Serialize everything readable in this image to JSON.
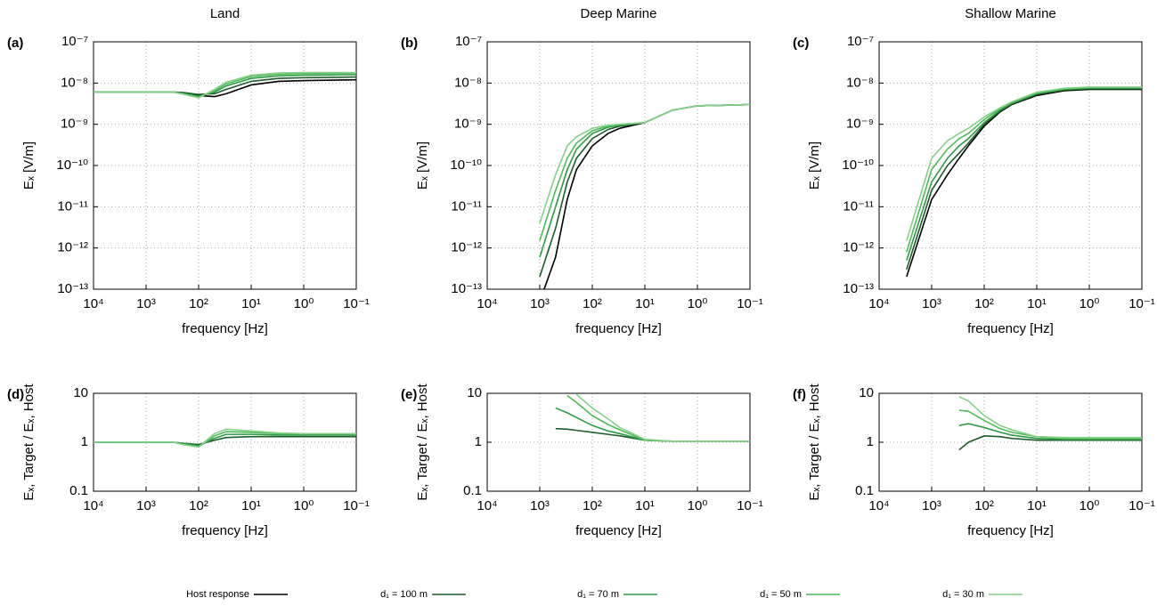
{
  "chart_data": [
    {
      "type": "line",
      "title": "Land",
      "panel_label": "(a)",
      "xlabel": "frequency [Hz]",
      "ylabel": "Eₓ [V/m]",
      "log_x": true,
      "log_y": true,
      "grid": true,
      "x": [
        10000,
        3000,
        1000,
        500,
        300,
        200,
        100,
        50,
        30,
        10,
        3,
        1,
        0.1
      ],
      "xlim": [
        10000,
        0.1
      ],
      "xticks": [
        {
          "value": 10000,
          "label": "10⁴"
        },
        {
          "value": 1000,
          "label": "10³"
        },
        {
          "value": 100,
          "label": "10²"
        },
        {
          "value": 10,
          "label": "10¹"
        },
        {
          "value": 1,
          "label": "10⁰"
        },
        {
          "value": 0.1,
          "label": "10⁻¹"
        }
      ],
      "ylim": [
        1e-13,
        1e-07
      ],
      "yticks": [
        {
          "value": 1e-13,
          "label": "10⁻¹³"
        },
        {
          "value": 1e-12,
          "label": "10⁻¹²"
        },
        {
          "value": 1e-11,
          "label": "10⁻¹¹"
        },
        {
          "value": 1e-10,
          "label": "10⁻¹⁰"
        },
        {
          "value": 1e-09,
          "label": "10⁻⁹"
        },
        {
          "value": 1e-08,
          "label": "10⁻⁸"
        },
        {
          "value": 1e-07,
          "label": "10⁻⁷"
        }
      ],
      "series": [
        {
          "name": "Host response",
          "color": "#000000",
          "values": [
            6e-09,
            6e-09,
            6e-09,
            6e-09,
            6e-09,
            5.8e-09,
            5e-09,
            4.7e-09,
            5.5e-09,
            9e-09,
            1.1e-08,
            1.15e-08,
            1.2e-08
          ]
        },
        {
          "name": "d₁ = 100 m",
          "color": "#1e5c2c",
          "values": [
            6e-09,
            6e-09,
            6e-09,
            6e-09,
            6e-09,
            5.9e-09,
            5.3e-09,
            5.5e-09,
            7e-09,
            1.1e-08,
            1.3e-08,
            1.35e-08,
            1.4e-08
          ]
        },
        {
          "name": "d₁ = 70 m",
          "color": "#2e9a45",
          "values": [
            6e-09,
            6e-09,
            6e-09,
            6e-09,
            6e-09,
            5.6e-09,
            4.8e-09,
            6e-09,
            8.5e-09,
            1.3e-08,
            1.5e-08,
            1.55e-08,
            1.6e-08
          ]
        },
        {
          "name": "d₁ = 50 m",
          "color": "#4dbb55",
          "values": [
            6e-09,
            6e-09,
            6e-09,
            6e-09,
            6e-09,
            5.5e-09,
            4.5e-09,
            6.5e-09,
            9.5e-09,
            1.45e-08,
            1.65e-08,
            1.7e-08,
            1.75e-08
          ]
        },
        {
          "name": "d₁ = 30 m",
          "color": "#86d08a",
          "values": [
            6e-09,
            6e-09,
            6e-09,
            6e-09,
            6e-09,
            5.4e-09,
            4.4e-09,
            7e-09,
            1.05e-08,
            1.55e-08,
            1.75e-08,
            1.8e-08,
            1.8e-08
          ]
        }
      ]
    },
    {
      "type": "line",
      "title": "Deep Marine",
      "panel_label": "(b)",
      "xlabel": "frequency [Hz]",
      "ylabel": "Eₓ [V/m]",
      "log_x": true,
      "log_y": true,
      "grid": true,
      "x": [
        10000,
        3000,
        1000,
        500,
        300,
        200,
        100,
        50,
        30,
        10,
        3,
        1,
        0.1
      ],
      "xlim": [
        10000,
        0.1
      ],
      "xticks": [
        {
          "value": 10000,
          "label": "10⁴"
        },
        {
          "value": 1000,
          "label": "10³"
        },
        {
          "value": 100,
          "label": "10²"
        },
        {
          "value": 10,
          "label": "10¹"
        },
        {
          "value": 1,
          "label": "10⁰"
        },
        {
          "value": 0.1,
          "label": "10⁻¹"
        }
      ],
      "ylim": [
        1e-13,
        1e-07
      ],
      "yticks": [
        {
          "value": 1e-13,
          "label": "10⁻¹³"
        },
        {
          "value": 1e-12,
          "label": "10⁻¹²"
        },
        {
          "value": 1e-11,
          "label": "10⁻¹¹"
        },
        {
          "value": 1e-10,
          "label": "10⁻¹⁰"
        },
        {
          "value": 1e-09,
          "label": "10⁻⁹"
        },
        {
          "value": 1e-08,
          "label": "10⁻⁸"
        },
        {
          "value": 1e-07,
          "label": "10⁻⁷"
        }
      ],
      "series": [
        {
          "name": "Host response",
          "color": "#000000",
          "values": [
            null,
            null,
            5e-14,
            6e-13,
            1.5e-11,
            8e-11,
            3e-10,
            6e-10,
            8e-10,
            1.1e-09,
            2.2e-09,
            2.8e-09,
            3e-09
          ]
        },
        {
          "name": "d₁ = 100 m",
          "color": "#1e5c2c",
          "values": [
            null,
            null,
            2e-13,
            3e-12,
            4e-11,
            1.5e-10,
            4.5e-10,
            7.5e-10,
            9e-10,
            1.1e-09,
            2.2e-09,
            2.8e-09,
            3e-09
          ]
        },
        {
          "name": "d₁ = 70 m",
          "color": "#2e9a45",
          "values": [
            null,
            null,
            6e-13,
            1e-11,
            8e-11,
            2.5e-10,
            6e-10,
            8.5e-10,
            9.5e-10,
            1.1e-09,
            2.2e-09,
            2.8e-09,
            3e-09
          ]
        },
        {
          "name": "d₁ = 50 m",
          "color": "#4dbb55",
          "values": [
            null,
            null,
            1.5e-12,
            2.5e-11,
            1.5e-10,
            3.5e-10,
            7e-10,
            9e-10,
            1e-09,
            1.1e-09,
            2.2e-09,
            2.8e-09,
            3e-09
          ]
        },
        {
          "name": "d₁ = 30 m",
          "color": "#86d08a",
          "values": [
            null,
            null,
            4e-12,
            6e-11,
            3e-10,
            5e-10,
            8e-10,
            9.5e-10,
            1e-09,
            1.1e-09,
            2.2e-09,
            2.8e-09,
            3e-09
          ]
        }
      ]
    },
    {
      "type": "line",
      "title": "Shallow Marine",
      "panel_label": "(c)",
      "xlabel": "frequency [Hz]",
      "ylabel": "Eₓ [V/m]",
      "log_x": true,
      "log_y": true,
      "grid": true,
      "x": [
        10000,
        3000,
        1000,
        500,
        300,
        200,
        100,
        50,
        30,
        10,
        3,
        1,
        0.1
      ],
      "xlim": [
        10000,
        0.1
      ],
      "xticks": [
        {
          "value": 10000,
          "label": "10⁴"
        },
        {
          "value": 1000,
          "label": "10³"
        },
        {
          "value": 100,
          "label": "10²"
        },
        {
          "value": 10,
          "label": "10¹"
        },
        {
          "value": 1,
          "label": "10⁰"
        },
        {
          "value": 0.1,
          "label": "10⁻¹"
        }
      ],
      "ylim": [
        1e-13,
        1e-07
      ],
      "yticks": [
        {
          "value": 1e-13,
          "label": "10⁻¹³"
        },
        {
          "value": 1e-12,
          "label": "10⁻¹²"
        },
        {
          "value": 1e-11,
          "label": "10⁻¹¹"
        },
        {
          "value": 1e-10,
          "label": "10⁻¹⁰"
        },
        {
          "value": 1e-09,
          "label": "10⁻⁹"
        },
        {
          "value": 1e-08,
          "label": "10⁻⁸"
        },
        {
          "value": 1e-07,
          "label": "10⁻⁷"
        }
      ],
      "series": [
        {
          "name": "Host response",
          "color": "#000000",
          "values": [
            null,
            2e-13,
            1.5e-11,
            6e-11,
            1.5e-10,
            3e-10,
            9e-10,
            2e-09,
            3e-09,
            5e-09,
            6.5e-09,
            7e-09,
            7e-09
          ]
        },
        {
          "name": "d₁ = 100 m",
          "color": "#1e5c2c",
          "values": [
            null,
            3e-13,
            2.5e-11,
            1e-10,
            2e-10,
            3.5e-10,
            1e-09,
            2.1e-09,
            3.1e-09,
            5.3e-09,
            6.8e-09,
            7.3e-09,
            7.3e-09
          ]
        },
        {
          "name": "d₁ = 70 m",
          "color": "#2e9a45",
          "values": [
            null,
            5e-13,
            4e-11,
            1.5e-10,
            3e-10,
            4.5e-10,
            1.1e-09,
            2.2e-09,
            3.2e-09,
            5.5e-09,
            7e-09,
            7.5e-09,
            7.5e-09
          ]
        },
        {
          "name": "d₁ = 50 m",
          "color": "#4dbb55",
          "values": [
            null,
            8e-13,
            8e-11,
            2.5e-10,
            4.5e-10,
            6e-10,
            1.3e-09,
            2.4e-09,
            3.4e-09,
            5.8e-09,
            7.3e-09,
            7.8e-09,
            7.8e-09
          ]
        },
        {
          "name": "d₁ = 30 m",
          "color": "#86d08a",
          "values": [
            null,
            1.5e-12,
            1.5e-10,
            4e-10,
            6e-10,
            8e-10,
            1.5e-09,
            2.5e-09,
            3.5e-09,
            6e-09,
            7.5e-09,
            8e-09,
            8e-09
          ]
        }
      ]
    },
    {
      "type": "line",
      "panel_label": "(d)",
      "xlabel": "frequency [Hz]",
      "ylabel": "Eₓ, Target / Eₓ, Host",
      "log_x": true,
      "log_y": true,
      "grid": true,
      "x": [
        10000,
        3000,
        1000,
        500,
        300,
        200,
        100,
        50,
        30,
        10,
        3,
        1,
        0.1
      ],
      "xlim": [
        10000,
        0.1
      ],
      "xticks": [
        {
          "value": 10000,
          "label": "10⁴"
        },
        {
          "value": 1000,
          "label": "10³"
        },
        {
          "value": 100,
          "label": "10²"
        },
        {
          "value": 10,
          "label": "10¹"
        },
        {
          "value": 1,
          "label": "10⁰"
        },
        {
          "value": 0.1,
          "label": "10⁻¹"
        }
      ],
      "ylim": [
        0.1,
        10
      ],
      "yticks": [
        0.1,
        1,
        10
      ],
      "series": [
        {
          "name": "d₁ = 100 m",
          "color": "#1e5c2c",
          "values": [
            1,
            1,
            1,
            1,
            1,
            0.95,
            0.9,
            1.1,
            1.25,
            1.3,
            1.3,
            1.3,
            1.3
          ]
        },
        {
          "name": "d₁ = 70 m",
          "color": "#2e9a45",
          "values": [
            1,
            1,
            1,
            1,
            1,
            0.95,
            0.85,
            1.2,
            1.45,
            1.45,
            1.4,
            1.4,
            1.4
          ]
        },
        {
          "name": "d₁ = 50 m",
          "color": "#4dbb55",
          "values": [
            1,
            1,
            1,
            1,
            1,
            0.9,
            0.8,
            1.35,
            1.65,
            1.6,
            1.5,
            1.5,
            1.5
          ]
        },
        {
          "name": "d₁ = 30 m",
          "color": "#86d08a",
          "values": [
            1,
            1,
            1,
            1,
            1,
            0.9,
            0.8,
            1.5,
            1.85,
            1.7,
            1.55,
            1.5,
            1.5
          ]
        }
      ]
    },
    {
      "type": "line",
      "panel_label": "(e)",
      "xlabel": "frequency [Hz]",
      "ylabel": "Eₓ, Target / Eₓ, Host",
      "log_x": true,
      "log_y": true,
      "grid": true,
      "x": [
        10000,
        3000,
        1000,
        500,
        300,
        200,
        100,
        50,
        30,
        10,
        3,
        1,
        0.1
      ],
      "xlim": [
        10000,
        0.1
      ],
      "xticks": [
        {
          "value": 10000,
          "label": "10⁴"
        },
        {
          "value": 1000,
          "label": "10³"
        },
        {
          "value": 100,
          "label": "10²"
        },
        {
          "value": 10,
          "label": "10¹"
        },
        {
          "value": 1,
          "label": "10⁰"
        },
        {
          "value": 0.1,
          "label": "10⁻¹"
        }
      ],
      "ylim": [
        0.1,
        10
      ],
      "yticks": [
        0.1,
        1,
        10
      ],
      "series": [
        {
          "name": "d₁ = 100 m",
          "color": "#1e5c2c",
          "values": [
            null,
            null,
            null,
            1.9,
            1.85,
            1.75,
            1.6,
            1.45,
            1.35,
            1.1,
            1.05,
            1.05,
            1.05
          ]
        },
        {
          "name": "d₁ = 70 m",
          "color": "#2e9a45",
          "values": [
            null,
            null,
            null,
            5,
            4,
            3.2,
            2.2,
            1.7,
            1.5,
            1.1,
            1.05,
            1.05,
            1.05
          ]
        },
        {
          "name": "d₁ = 50 m",
          "color": "#4dbb55",
          "values": [
            null,
            null,
            null,
            null,
            9,
            6.5,
            3.5,
            2.3,
            1.8,
            1.1,
            1.05,
            1.05,
            1.05
          ]
        },
        {
          "name": "d₁ = 30 m",
          "color": "#86d08a",
          "values": [
            null,
            null,
            null,
            null,
            null,
            9.5,
            5,
            3,
            2,
            1.15,
            1.05,
            1.05,
            1.05
          ]
        }
      ]
    },
    {
      "type": "line",
      "panel_label": "(f)",
      "xlabel": "frequency [Hz]",
      "ylabel": "Eₓ, Target / Eₓ, Host",
      "log_x": true,
      "log_y": true,
      "grid": true,
      "x": [
        10000,
        3000,
        1000,
        500,
        300,
        200,
        100,
        50,
        30,
        10,
        3,
        1,
        0.1
      ],
      "xlim": [
        10000,
        0.1
      ],
      "xticks": [
        {
          "value": 10000,
          "label": "10⁴"
        },
        {
          "value": 1000,
          "label": "10³"
        },
        {
          "value": 100,
          "label": "10²"
        },
        {
          "value": 10,
          "label": "10¹"
        },
        {
          "value": 1,
          "label": "10⁰"
        },
        {
          "value": 0.1,
          "label": "10⁻¹"
        }
      ],
      "ylim": [
        0.1,
        10
      ],
      "yticks": [
        0.1,
        1,
        10
      ],
      "series": [
        {
          "name": "d₁ = 100 m",
          "color": "#1e5c2c",
          "values": [
            null,
            null,
            null,
            null,
            0.7,
            1.0,
            1.35,
            1.3,
            1.2,
            1.1,
            1.1,
            1.1,
            1.1
          ]
        },
        {
          "name": "d₁ = 70 m",
          "color": "#2e9a45",
          "values": [
            null,
            null,
            null,
            null,
            2.2,
            2.4,
            2.0,
            1.6,
            1.4,
            1.2,
            1.15,
            1.15,
            1.15
          ]
        },
        {
          "name": "d₁ = 50 m",
          "color": "#4dbb55",
          "values": [
            null,
            null,
            null,
            null,
            4.5,
            4.3,
            2.8,
            1.9,
            1.6,
            1.3,
            1.2,
            1.2,
            1.2
          ]
        },
        {
          "name": "d₁ = 30 m",
          "color": "#86d08a",
          "values": [
            null,
            null,
            null,
            null,
            8.5,
            7,
            3.5,
            2.2,
            1.8,
            1.3,
            1.25,
            1.25,
            1.25
          ]
        }
      ]
    }
  ]
}
